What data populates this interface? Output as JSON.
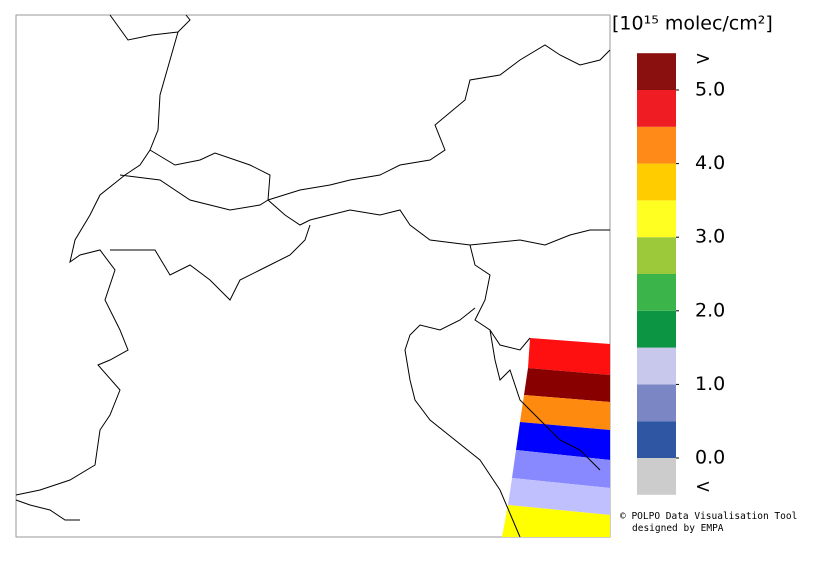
{
  "colorbar": {
    "unit": "[10¹⁵ molec/cm²]",
    "bins": [
      0,
      0.5,
      1,
      1.5,
      2,
      2.5,
      3,
      3.5,
      4,
      4.5,
      5
    ],
    "colors": [
      "#2f56a3",
      "#7b86c4",
      "#c8c8ec",
      "#0c9644",
      "#3bb44a",
      "#9bc93a",
      "#ffff22",
      "#ffcc00",
      "#ff8a18",
      "#f01c24"
    ],
    "over_color": "#8a1010",
    "under_color": "#cccccc",
    "over_label": ">",
    "under_label": "<",
    "ticks": [
      {
        "value": 0,
        "label": "0.0"
      },
      {
        "value": 1,
        "label": "1.0"
      },
      {
        "value": 2,
        "label": "2.0"
      },
      {
        "value": 3,
        "label": "3.0"
      },
      {
        "value": 4,
        "label": "4.0"
      },
      {
        "value": 5,
        "label": "5.0"
      }
    ]
  },
  "credits": [
    "© POLPO Data Visualisation Tool",
    "designed by EMPA"
  ]
}
